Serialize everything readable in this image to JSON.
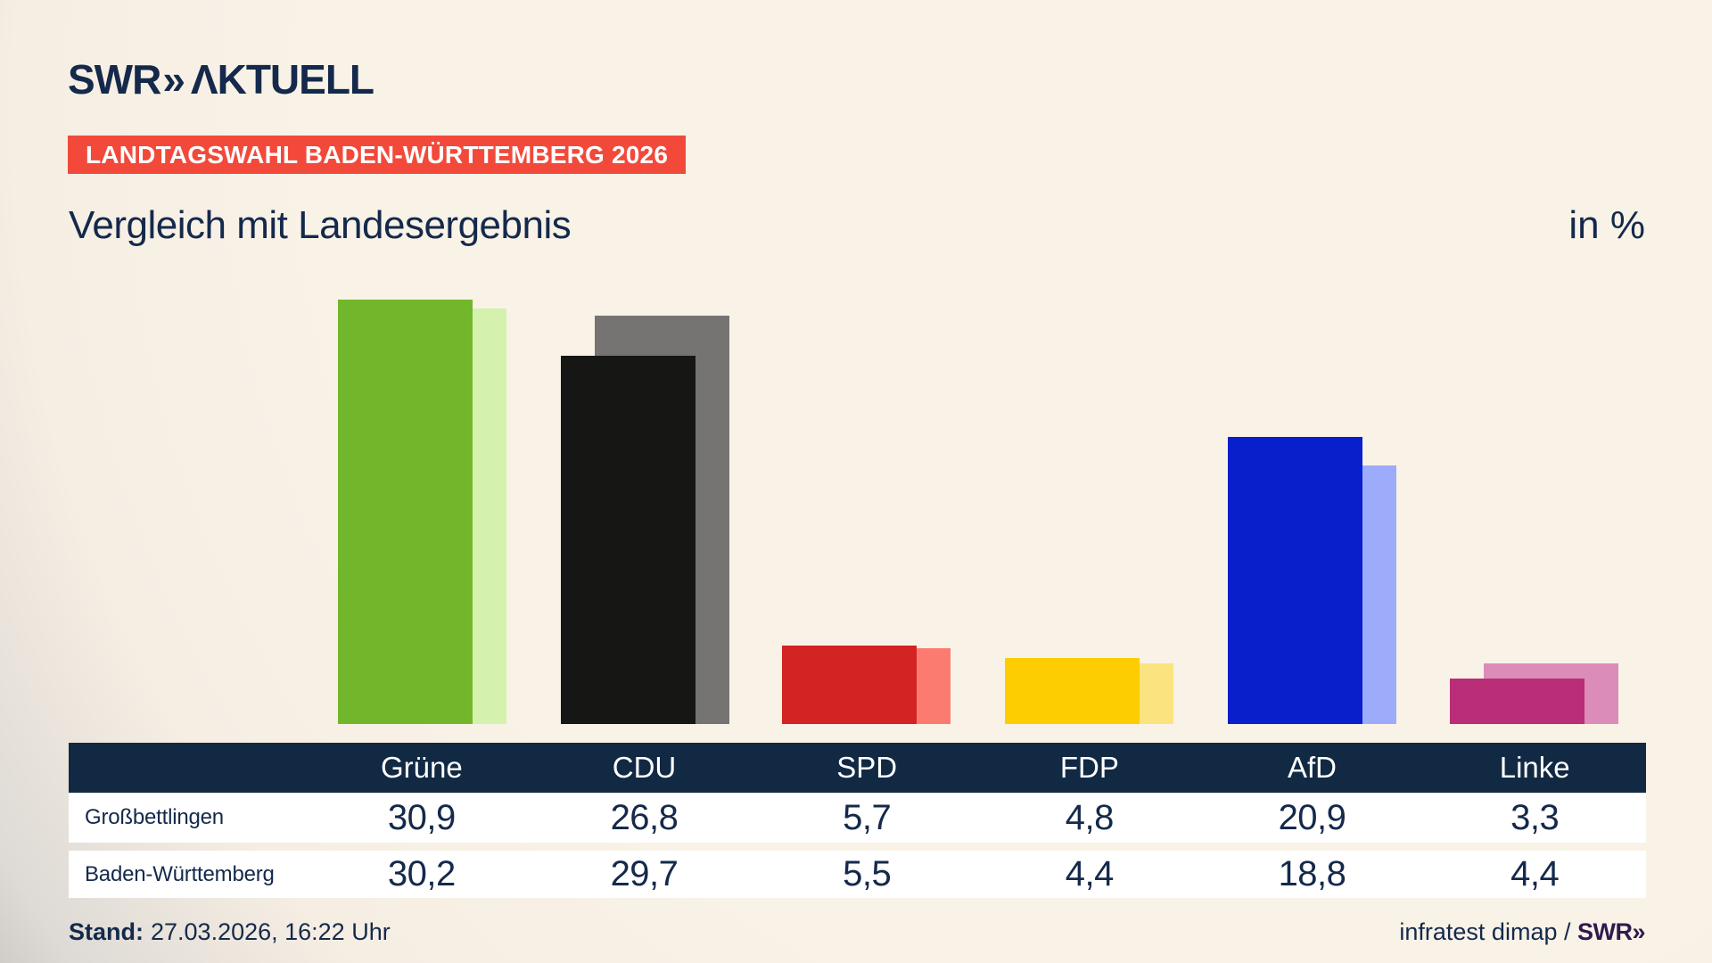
{
  "header": {
    "logo_swr": "SWR",
    "logo_chevrons": "»",
    "logo_aktuell": "ΛKTUELL",
    "banner": "LANDTAGSWAHL BADEN-WÜRTTEMBERG 2026",
    "title": "Vergleich mit Landesergebnis",
    "unit_label": "in %"
  },
  "chart_data": {
    "type": "bar",
    "title": "Vergleich mit Landesergebnis",
    "unit": "in %",
    "categories": [
      "Grüne",
      "CDU",
      "SPD",
      "FDP",
      "AfD",
      "Linke"
    ],
    "series": [
      {
        "name": "Großbettlingen",
        "values": [
          30.9,
          26.8,
          5.7,
          4.8,
          20.9,
          3.3
        ],
        "colors": [
          "#72b72b",
          "#161615",
          "#d32322",
          "#fccd00",
          "#0a1fcc",
          "#b92e76"
        ]
      },
      {
        "name": "Baden-Württemberg",
        "values": [
          30.2,
          29.7,
          5.5,
          4.4,
          18.8,
          4.4
        ],
        "colors": [
          "#d4f2ae",
          "#757472",
          "#fb7b70",
          "#fbe37f",
          "#9dacfa",
          "#dc8cb8"
        ]
      }
    ],
    "ylim": [
      0,
      35
    ],
    "grid": false,
    "legend_position": "table-rows-below",
    "value_labels": "shown in table below chart, comma decimal format"
  },
  "table": {
    "columns": [
      "Grüne",
      "CDU",
      "SPD",
      "FDP",
      "AfD",
      "Linke"
    ],
    "rows": [
      {
        "label": "Großbettlingen",
        "values": [
          "30,9",
          "26,8",
          "5,7",
          "4,8",
          "20,9",
          "3,3"
        ]
      },
      {
        "label": "Baden-Württemberg",
        "values": [
          "30,2",
          "29,7",
          "5,5",
          "4,4",
          "18,8",
          "4,4"
        ]
      }
    ]
  },
  "footer": {
    "stand_label": "Stand:",
    "stand_value": "27.03.2026, 16:22 Uhr",
    "source_text": "infratest dimap / ",
    "source_logo": "SWR»"
  },
  "colors": {
    "background_cream": "#f9f2e7",
    "background_gray_corner": "#b3b0ac",
    "navy": "#14294b",
    "table_header_bg": "#122944",
    "banner_red": "#f2493a",
    "banner_text": "#ffffff",
    "row_bg": "#ffffff",
    "source_logo_color": "#2d1b4e"
  }
}
